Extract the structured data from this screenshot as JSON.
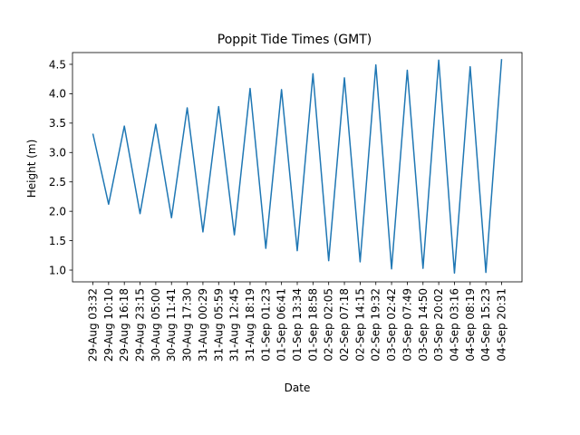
{
  "chart_data": {
    "type": "line",
    "title": "Poppit Tide Times (GMT)",
    "xlabel": "Date",
    "ylabel": "Height (m)",
    "ylim": [
      0.8,
      4.7
    ],
    "yticks": [
      "1.0",
      "1.5",
      "2.0",
      "2.5",
      "3.0",
      "3.5",
      "4.0",
      "4.5"
    ],
    "grid": false,
    "color": "#1f77b4",
    "categories": [
      "29-Aug 03:32",
      "29-Aug 10:10",
      "29-Aug 16:18",
      "29-Aug 23:15",
      "30-Aug 05:00",
      "30-Aug 11:41",
      "30-Aug 17:30",
      "31-Aug 00:29",
      "31-Aug 05:59",
      "31-Aug 12:45",
      "31-Aug 18:19",
      "01-Sep 01:23",
      "01-Sep 06:41",
      "01-Sep 13:34",
      "01-Sep 18:58",
      "02-Sep 02:05",
      "02-Sep 07:18",
      "02-Sep 14:15",
      "02-Sep 19:32",
      "03-Sep 02:42",
      "03-Sep 07:49",
      "03-Sep 14:50",
      "03-Sep 20:02",
      "04-Sep 03:16",
      "04-Sep 08:19",
      "04-Sep 15:23",
      "04-Sep 20:31"
    ],
    "series": [
      {
        "values": [
          3.32,
          2.12,
          3.45,
          1.96,
          3.48,
          1.89,
          3.76,
          1.65,
          3.78,
          1.6,
          4.09,
          1.37,
          4.07,
          1.33,
          4.34,
          1.16,
          4.27,
          1.14,
          4.49,
          1.02,
          4.4,
          1.03,
          4.57,
          0.95,
          4.46,
          0.96,
          4.59
        ]
      }
    ]
  }
}
